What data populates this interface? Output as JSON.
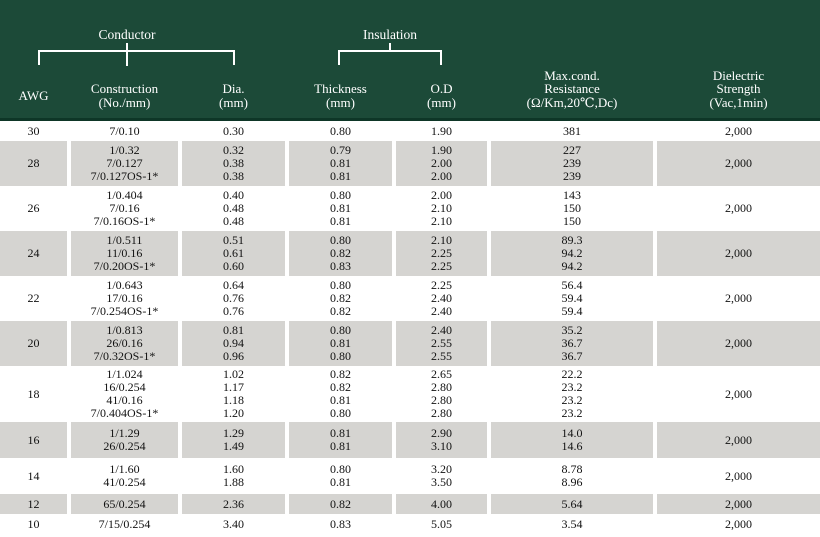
{
  "header": {
    "conductor_group_label": "Conductor",
    "insulation_group_label": "Insulation",
    "columns": {
      "awg": {
        "line1": "AWG"
      },
      "construction": {
        "line1": "Construction",
        "line2": "(No./mm)"
      },
      "dia": {
        "line1": "Dia.",
        "line2": "(mm)"
      },
      "thickness": {
        "line1": "Thickness",
        "line2": "(mm)"
      },
      "od": {
        "line1": "O.D",
        "line2": "(mm)"
      },
      "resistance": {
        "line1": "Max.cond.",
        "line2": "Resistance",
        "line3": "(Ω/Km,20℃,Dc)"
      },
      "dielectric": {
        "line1": "Dielectric",
        "line2": "Strength",
        "line3": "(Vac,1min)"
      }
    }
  },
  "colors": {
    "header_bg": "#1c4a38",
    "header_border": "#0e3627",
    "header_text": "#ffffff",
    "row_bg": "#ffffff",
    "row_alt_bg": "#d5d4d1",
    "body_text": "#111111"
  },
  "table": {
    "groups": [
      {
        "awg": "30",
        "dielectric": "2,000",
        "rows": [
          {
            "construction": "7/0.10",
            "dia": "0.30",
            "thickness": "0.80",
            "od": "1.90",
            "resistance": "381"
          }
        ]
      },
      {
        "awg": "28",
        "dielectric": "2,000",
        "rows": [
          {
            "construction": "1/0.32",
            "dia": "0.32",
            "thickness": "0.79",
            "od": "1.90",
            "resistance": "227"
          },
          {
            "construction": "7/0.127",
            "dia": "0.38",
            "thickness": "0.81",
            "od": "2.00",
            "resistance": "239"
          },
          {
            "construction": "7/0.127OS-1*",
            "dia": "0.38",
            "thickness": "0.81",
            "od": "2.00",
            "resistance": "239"
          }
        ]
      },
      {
        "awg": "26",
        "dielectric": "2,000",
        "rows": [
          {
            "construction": "1/0.404",
            "dia": "0.40",
            "thickness": "0.80",
            "od": "2.00",
            "resistance": "143"
          },
          {
            "construction": "7/0.16",
            "dia": "0.48",
            "thickness": "0.81",
            "od": "2.10",
            "resistance": "150"
          },
          {
            "construction": "7/0.16OS-1*",
            "dia": "0.48",
            "thickness": "0.81",
            "od": "2.10",
            "resistance": "150"
          }
        ]
      },
      {
        "awg": "24",
        "dielectric": "2,000",
        "rows": [
          {
            "construction": "1/0.511",
            "dia": "0.51",
            "thickness": "0.80",
            "od": "2.10",
            "resistance": "89.3"
          },
          {
            "construction": "11/0.16",
            "dia": "0.61",
            "thickness": "0.82",
            "od": "2.25",
            "resistance": "94.2"
          },
          {
            "construction": "7/0.20OS-1*",
            "dia": "0.60",
            "thickness": "0.83",
            "od": "2.25",
            "resistance": "94.2"
          }
        ]
      },
      {
        "awg": "22",
        "dielectric": "2,000",
        "rows": [
          {
            "construction": "1/0.643",
            "dia": "0.64",
            "thickness": "0.80",
            "od": "2.25",
            "resistance": "56.4"
          },
          {
            "construction": "17/0.16",
            "dia": "0.76",
            "thickness": "0.82",
            "od": "2.40",
            "resistance": "59.4"
          },
          {
            "construction": "7/0.254OS-1*",
            "dia": "0.76",
            "thickness": "0.82",
            "od": "2.40",
            "resistance": "59.4"
          }
        ]
      },
      {
        "awg": "20",
        "dielectric": "2,000",
        "rows": [
          {
            "construction": "1/0.813",
            "dia": "0.81",
            "thickness": "0.80",
            "od": "2.40",
            "resistance": "35.2"
          },
          {
            "construction": "26/0.16",
            "dia": "0.94",
            "thickness": "0.81",
            "od": "2.55",
            "resistance": "36.7"
          },
          {
            "construction": "7/0.32OS-1*",
            "dia": "0.96",
            "thickness": "0.80",
            "od": "2.55",
            "resistance": "36.7"
          }
        ]
      },
      {
        "awg": "18",
        "dielectric": "2,000",
        "rows": [
          {
            "construction": "1/1.024",
            "dia": "1.02",
            "thickness": "0.82",
            "od": "2.65",
            "resistance": "22.2"
          },
          {
            "construction": "16/0.254",
            "dia": "1.17",
            "thickness": "0.82",
            "od": "2.80",
            "resistance": "23.2"
          },
          {
            "construction": "41/0.16",
            "dia": "1.18",
            "thickness": "0.81",
            "od": "2.80",
            "resistance": "23.2"
          },
          {
            "construction": "7/0.404OS-1*",
            "dia": "1.20",
            "thickness": "0.80",
            "od": "2.80",
            "resistance": "23.2"
          }
        ]
      },
      {
        "awg": "16",
        "dielectric": "2,000",
        "rows": [
          {
            "construction": "1/1.29",
            "dia": "1.29",
            "thickness": "0.81",
            "od": "2.90",
            "resistance": "14.0"
          },
          {
            "construction": "26/0.254",
            "dia": "1.49",
            "thickness": "0.81",
            "od": "3.10",
            "resistance": "14.6"
          }
        ]
      },
      {
        "awg": "14",
        "dielectric": "2,000",
        "rows": [
          {
            "construction": "1/1.60",
            "dia": "1.60",
            "thickness": "0.80",
            "od": "3.20",
            "resistance": "8.78"
          },
          {
            "construction": "41/0.254",
            "dia": "1.88",
            "thickness": "0.81",
            "od": "3.50",
            "resistance": "8.96"
          }
        ]
      },
      {
        "awg": "12",
        "dielectric": "2,000",
        "rows": [
          {
            "construction": "65/0.254",
            "dia": "2.36",
            "thickness": "0.82",
            "od": "4.00",
            "resistance": "5.64"
          }
        ]
      },
      {
        "awg": "10",
        "dielectric": "2,000",
        "rows": [
          {
            "construction": "7/15/0.254",
            "dia": "3.40",
            "thickness": "0.83",
            "od": "5.05",
            "resistance": "3.54"
          }
        ]
      }
    ]
  }
}
